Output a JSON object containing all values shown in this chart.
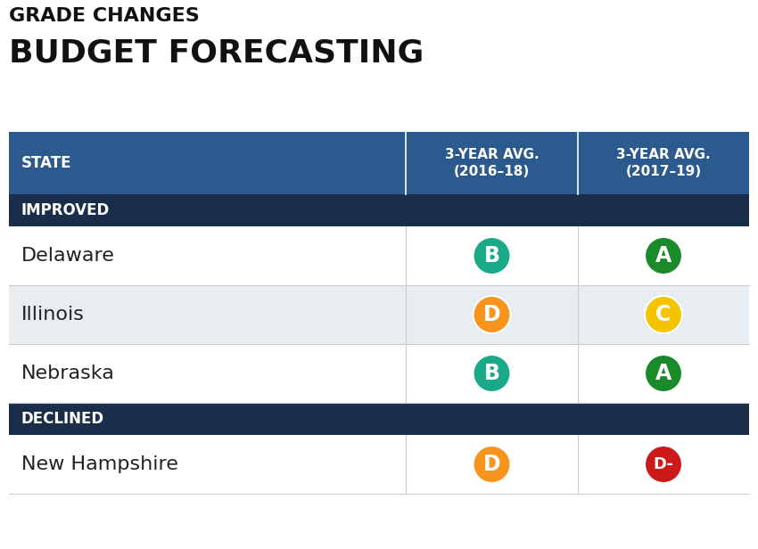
{
  "title1": "GRADE CHANGES",
  "title2": "BUDGET FORECASTING",
  "header_bg": "#2d5a8e",
  "header_text": "#ffffff",
  "section_bg": "#1a2e4a",
  "section_text": "#ffffff",
  "col1_header": "STATE",
  "col2_header": "3-YEAR AVG.\n(2016–18)",
  "col3_header": "3-YEAR AVG.\n(2017–19)",
  "improved_label": "IMPROVED",
  "declined_label": "DECLINED",
  "rows": [
    {
      "state": "Delaware",
      "grade1": "B",
      "grade2": "A",
      "color1": "#1aaa8a",
      "color2": "#1a8a2a",
      "text_color1": "#ffffff",
      "text_color2": "#ffffff"
    },
    {
      "state": "Illinois",
      "grade1": "D",
      "grade2": "C",
      "color1": "#f7941d",
      "color2": "#f5c400",
      "text_color1": "#ffffff",
      "text_color2": "#ffffff"
    },
    {
      "state": "Nebraska",
      "grade1": "B",
      "grade2": "A",
      "color1": "#1aaa8a",
      "color2": "#1a8a2a",
      "text_color1": "#ffffff",
      "text_color2": "#ffffff"
    }
  ],
  "declined_rows": [
    {
      "state": "New Hampshire",
      "grade1": "D",
      "grade2": "D-",
      "color1": "#f7941d",
      "color2": "#cc1a1a",
      "text_color1": "#ffffff",
      "text_color2": "#ffffff"
    }
  ],
  "row_bg_even": "#ffffff",
  "row_bg_odd": "#e8edf2",
  "border_color": "#cccccc",
  "state_text_color": "#222222",
  "fig_w": 8.5,
  "fig_h": 6.16,
  "dpi": 100
}
